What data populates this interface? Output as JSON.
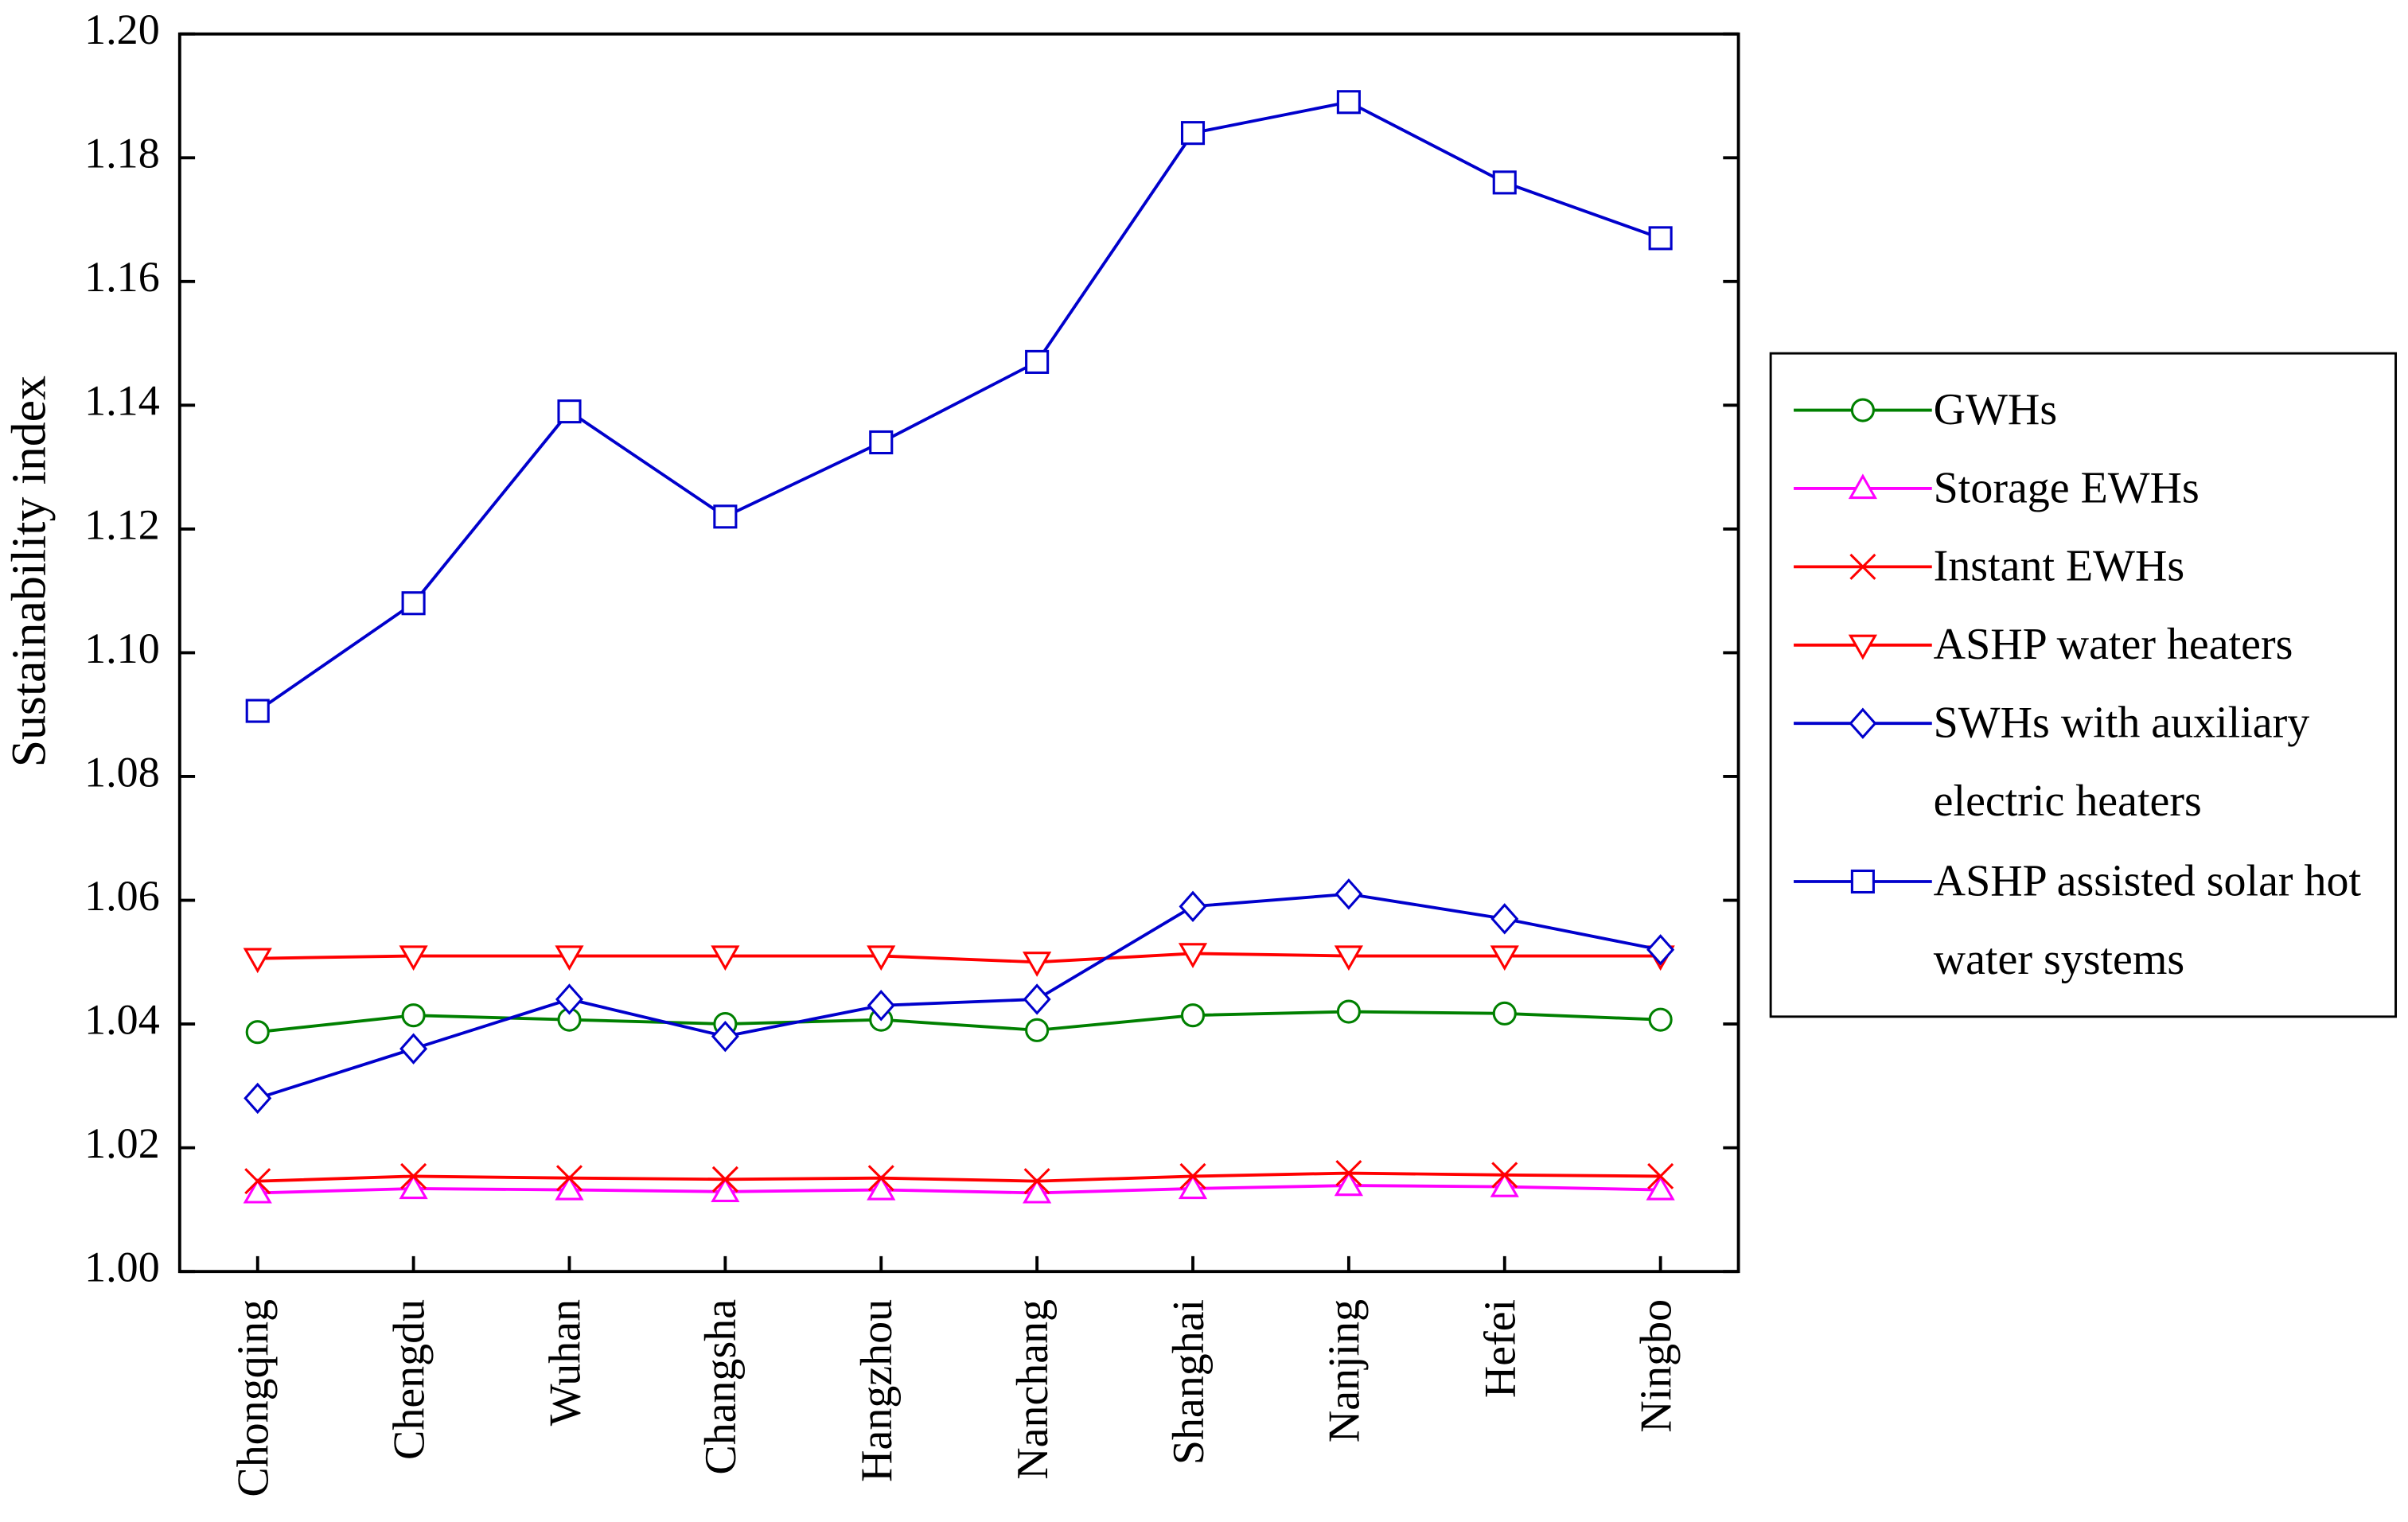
{
  "chart_data": {
    "type": "line",
    "y_label": "Sustainability index",
    "categories": [
      "Chongqing",
      "Chengdu",
      "Wuhan",
      "Changsha",
      "Hangzhou",
      "Nanchang",
      "Shanghai",
      "Nanjing",
      "Hefei",
      "Ningbo"
    ],
    "ylim": [
      1.0,
      1.2
    ],
    "yticks": [
      {
        "value": 1.0,
        "label": "1.00"
      },
      {
        "value": 1.02,
        "label": "1.02"
      },
      {
        "value": 1.04,
        "label": "1.04"
      },
      {
        "value": 1.06,
        "label": "1.06"
      },
      {
        "value": 1.08,
        "label": "1.08"
      },
      {
        "value": 1.1,
        "label": "1.10"
      },
      {
        "value": 1.12,
        "label": "1.12"
      },
      {
        "value": 1.14,
        "label": "1.14"
      },
      {
        "value": 1.16,
        "label": "1.16"
      },
      {
        "value": 1.18,
        "label": "1.18"
      },
      {
        "value": 1.2,
        "label": "1.20"
      }
    ],
    "grid": false,
    "legend": "right",
    "series": [
      {
        "name": "GWHs",
        "color": "#008000",
        "marker": "circle",
        "values": [
          1.0387,
          1.0414,
          1.0407,
          1.04,
          1.0407,
          1.039,
          1.0414,
          1.042,
          1.0417,
          1.0407
        ]
      },
      {
        "name": "Storage EWHs",
        "color": "#ff00ff",
        "marker": "triangle-up",
        "values": [
          1.0127,
          1.0134,
          1.0132,
          1.0129,
          1.0132,
          1.0127,
          1.0134,
          1.0139,
          1.0137,
          1.0132
        ]
      },
      {
        "name": "Instant EWHs",
        "color": "#ff0000",
        "marker": "cross",
        "values": [
          1.0146,
          1.0154,
          1.0151,
          1.0149,
          1.0151,
          1.0146,
          1.0154,
          1.0159,
          1.0156,
          1.0154
        ]
      },
      {
        "name": "ASHP water heaters",
        "color": "#ff0000",
        "marker": "triangle-down",
        "values": [
          1.0506,
          1.051,
          1.051,
          1.051,
          1.051,
          1.05,
          1.0514,
          1.051,
          1.051,
          1.051
        ]
      },
      {
        "name": "SWHs with auxiliary electric heaters",
        "color": "#0000cc",
        "marker": "diamond",
        "values": [
          1.028,
          1.036,
          1.044,
          1.038,
          1.043,
          1.044,
          1.059,
          1.061,
          1.057,
          1.052
        ]
      },
      {
        "name": "ASHP assisted solar hot water systems",
        "color": "#0000cc",
        "marker": "square",
        "values": [
          1.0906,
          1.108,
          1.139,
          1.122,
          1.134,
          1.147,
          1.184,
          1.189,
          1.176,
          1.167
        ]
      }
    ]
  }
}
